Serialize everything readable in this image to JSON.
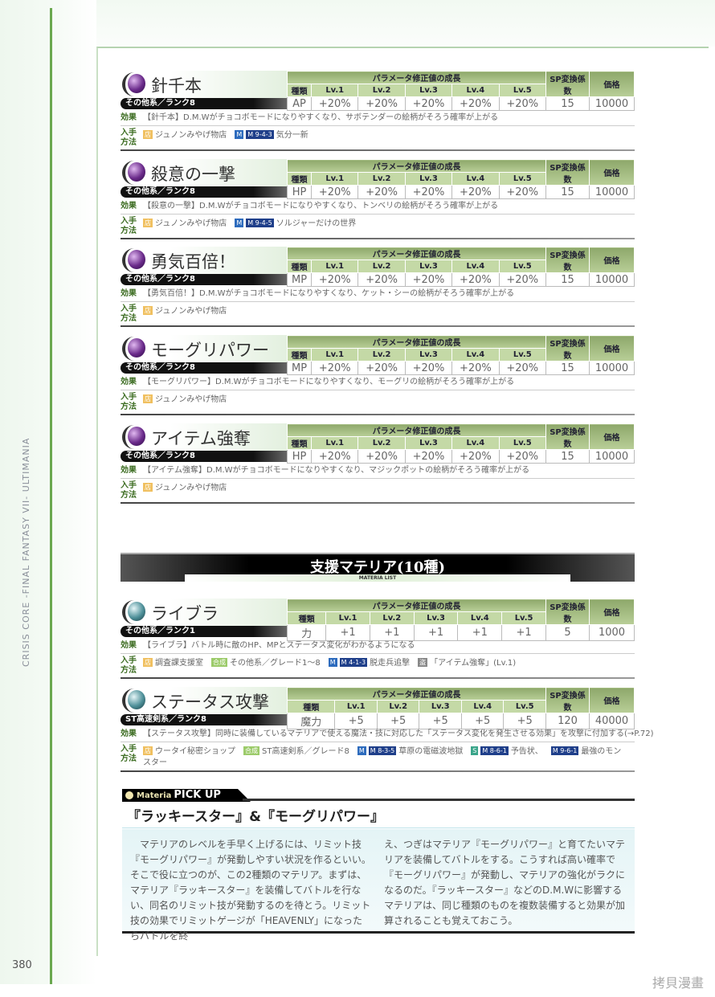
{
  "side_title": "CRISIS CORE -FINAL FANTASY VII- ULTIMANIA",
  "page_number": "380",
  "watermark": "拷貝漫畫",
  "table_headers": {
    "growth": "パラメータ修正値の成長",
    "type": "種類",
    "levels": [
      "Lv.1",
      "Lv.2",
      "Lv.3",
      "Lv.4",
      "Lv.5"
    ],
    "sp": "SP変換係数",
    "price": "価格"
  },
  "labels": {
    "effect": "効果",
    "acquire": "入手方法"
  },
  "badges": {
    "shop": "店",
    "synth": "合成",
    "m": "M",
    "steal": "盗",
    "s": "S"
  },
  "colors": {
    "purple_orb": "#6a2a8a",
    "teal_orb": "#4d8f98",
    "header_green": "#8ea86b"
  },
  "entries": [
    {
      "name": "針千本",
      "orb": "purple",
      "category": "その他系／ランク8",
      "type": "AP",
      "levels": [
        "+20%",
        "+20%",
        "+20%",
        "+20%",
        "+20%"
      ],
      "sp": "15",
      "price": "10000",
      "effect": "【針千本】D.M.Wがチョコボモードになりやすくなり、サボテンダーの絵柄がそろう確率が上がる",
      "acquire": [
        {
          "icon": "shop",
          "text": "ジュノンみやげ物店"
        },
        {
          "icon": "mission",
          "code": "9-4-3",
          "text": "気分一新"
        }
      ]
    },
    {
      "name": "殺意の一撃",
      "orb": "purple",
      "category": "その他系／ランク8",
      "type": "HP",
      "levels": [
        "+20%",
        "+20%",
        "+20%",
        "+20%",
        "+20%"
      ],
      "sp": "15",
      "price": "10000",
      "effect": "【殺意の一撃】D.M.Wがチョコボモードになりやすくなり、トンベリの絵柄がそろう確率が上がる",
      "acquire": [
        {
          "icon": "shop",
          "text": "ジュノンみやげ物店"
        },
        {
          "icon": "mission",
          "code": "9-4-5",
          "text": "ソルジャーだけの世界"
        }
      ]
    },
    {
      "name": "勇気百倍！",
      "orb": "purple",
      "category": "その他系／ランク8",
      "type": "MP",
      "levels": [
        "+20%",
        "+20%",
        "+20%",
        "+20%",
        "+20%"
      ],
      "sp": "15",
      "price": "10000",
      "effect": "【勇気百倍！】D.M.Wがチョコボモードになりやすくなり、ケット・シーの絵柄がそろう確率が上がる",
      "acquire": [
        {
          "icon": "shop",
          "text": "ジュノンみやげ物店"
        }
      ]
    },
    {
      "name": "モーグリパワー",
      "orb": "purple",
      "category": "その他系／ランク8",
      "type": "MP",
      "levels": [
        "+20%",
        "+20%",
        "+20%",
        "+20%",
        "+20%"
      ],
      "sp": "15",
      "price": "10000",
      "effect": "【モーグリパワー】D.M.Wがチョコボモードになりやすくなり、モーグリの絵柄がそろう確率が上がる",
      "acquire": [
        {
          "icon": "shop",
          "text": "ジュノンみやげ物店"
        }
      ]
    },
    {
      "name": "アイテム強奪",
      "orb": "purple",
      "category": "その他系／ランク8",
      "type": "HP",
      "levels": [
        "+20%",
        "+20%",
        "+20%",
        "+20%",
        "+20%"
      ],
      "sp": "15",
      "price": "10000",
      "effect": "【アイテム強奪】D.M.Wがチョコボモードになりやすくなり、マジックポットの絵柄がそろう確率が上がる",
      "acquire": [
        {
          "icon": "shop",
          "text": "ジュノンみやげ物店"
        }
      ]
    },
    {
      "name": "ライブラ",
      "orb": "teal",
      "category": "その他系／ランク1",
      "type": "力",
      "levels": [
        "+1",
        "+1",
        "+1",
        "+1",
        "+1"
      ],
      "sp": "5",
      "price": "1000",
      "effect": "【ライブラ】バトル時に敵のHP、MPとステータス変化がわかるようになる",
      "acquire": [
        {
          "icon": "shop",
          "text": "調査課支援室"
        },
        {
          "icon": "synth",
          "text": "その他系／グレード1～8"
        },
        {
          "icon": "mission",
          "code": "4-1-3",
          "text": "脱走兵追撃"
        },
        {
          "icon": "steal",
          "text": "「アイテム強奪」(Lv.1)"
        }
      ]
    },
    {
      "name": "ステータス攻撃",
      "orb": "teal",
      "category": "ST高速剣系／ランク8",
      "type": "魔力",
      "levels": [
        "+5",
        "+5",
        "+5",
        "+5",
        "+5"
      ],
      "sp": "120",
      "price": "40000",
      "effect": "【ステータス攻撃】同時に装備しているマテリアで使える魔法・技に対応した「ステータス変化を発生させる効果」を攻撃に付加する(→P.72)",
      "acquire": [
        {
          "icon": "shop",
          "text": "ウータイ秘密ショップ"
        },
        {
          "icon": "synth",
          "text": "ST高速剣系／グレード8"
        },
        {
          "icon": "mission",
          "code": "8-3-5",
          "text": "草原の電磁波地獄"
        },
        {
          "icon": "s-mission",
          "code": "8-6-1",
          "text": "予告状、"
        },
        {
          "icon": "mission-only",
          "code": "9-6-1",
          "text": "最強のモンスター"
        }
      ]
    }
  ],
  "banner": {
    "title": "支援マテリア(10種)",
    "subtitle": "MATERIA LIST"
  },
  "pickup": {
    "tab_small": "Materia",
    "tab": "PICK UP",
    "title": "『ラッキースター』&『モーグリパワー』",
    "col1": "マテリアのレベルを手早く上げるには、リミット技『モーグリパワー』が発動しやすい状況を作るといい。そこで役に立つのが、この2種類のマテリア。まずは、マテリア『ラッキースター』を装備してバトルを行ない、同名のリミット技が発動するのを待とう。リミット技の効果でリミットゲージが「HEAVENLY」になったらバトルを終",
    "col2": "え、つぎはマテリア『モーグリパワー』と育てたいマテリアを装備してバトルをする。こうすれば高い確率で『モーグリパワー』が発動し、マテリアの強化がラクになるのだ。『ラッキースター』などのD.M.Wに影響するマテリアは、同じ種類のものを複数装備すると効果が加算されることも覚えておこう。"
  }
}
